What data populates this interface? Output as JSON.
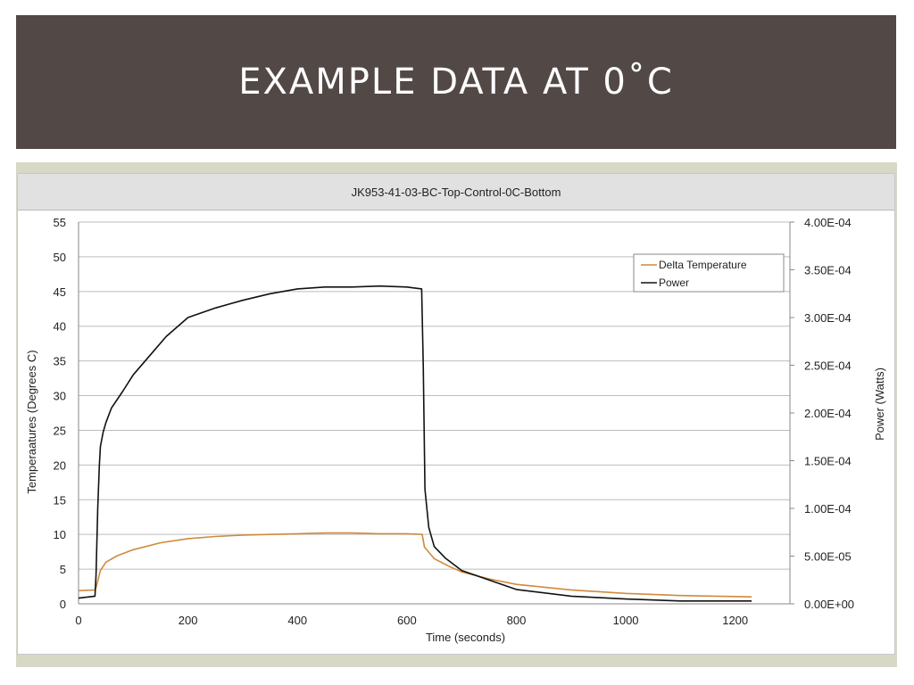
{
  "slide": {
    "title": "EXAMPLE DATA AT 0˚C"
  },
  "colors": {
    "banner": "#524846",
    "frame": "#d7d9c6",
    "delta_temperature": "#d08a3c",
    "power": "#111111"
  },
  "chart_data": {
    "type": "line",
    "title": "JK953-41-03-BC-Top-Control-0C-Bottom",
    "xlabel": "Time (seconds)",
    "ylabel_left": "Temperaatures (Degrees C)",
    "ylabel_right": "Power (Watts)",
    "xlim": [
      0,
      1300
    ],
    "ylim_left": [
      0,
      55
    ],
    "ylim_right": [
      0,
      0.0004
    ],
    "x_ticks": [
      "0",
      "200",
      "400",
      "600",
      "800",
      "1000",
      "1200"
    ],
    "y_left_ticks": [
      "0",
      "5",
      "10",
      "15",
      "20",
      "25",
      "30",
      "35",
      "40",
      "45",
      "50",
      "55"
    ],
    "y_right_ticks": [
      "0.00E+00",
      "5.00E-05",
      "1.00E-04",
      "1.50E-04",
      "2.00E-04",
      "2.50E-04",
      "3.00E-04",
      "3.50E-04",
      "4.00E-04"
    ],
    "grid": true,
    "legend": "top-right",
    "series": [
      {
        "name": "Delta Temperature",
        "axis": "left",
        "color": "#d08a3c",
        "x": [
          0,
          30,
          33,
          40,
          50,
          70,
          100,
          150,
          200,
          250,
          300,
          350,
          400,
          450,
          500,
          550,
          600,
          628,
          632,
          650,
          680,
          700,
          750,
          800,
          900,
          1000,
          1100,
          1230
        ],
        "y": [
          1.9,
          2.0,
          2.6,
          4.8,
          6.0,
          6.9,
          7.8,
          8.8,
          9.4,
          9.7,
          9.9,
          10.0,
          10.1,
          10.2,
          10.2,
          10.1,
          10.1,
          10.0,
          8.2,
          6.5,
          5.3,
          4.6,
          3.6,
          2.8,
          2.0,
          1.5,
          1.2,
          1.0
        ]
      },
      {
        "name": "Power",
        "axis": "right",
        "color": "#111111",
        "x": [
          0,
          30,
          32,
          35,
          38,
          40,
          45,
          50,
          60,
          80,
          100,
          130,
          160,
          200,
          250,
          300,
          350,
          400,
          450,
          500,
          550,
          600,
          627,
          630,
          633,
          640,
          650,
          670,
          700,
          750,
          800,
          900,
          1000,
          1100,
          1230
        ],
        "y": [
          6e-06,
          8e-06,
          3e-05,
          0.0001,
          0.000145,
          0.000165,
          0.00018,
          0.00019,
          0.000205,
          0.000222,
          0.00024,
          0.00026,
          0.00028,
          0.0003,
          0.00031,
          0.000318,
          0.000325,
          0.00033,
          0.000332,
          0.000332,
          0.000333,
          0.000332,
          0.00033,
          0.00025,
          0.00012,
          8e-05,
          6e-05,
          4.8e-05,
          3.5e-05,
          2.5e-05,
          1.5e-05,
          8e-06,
          5e-06,
          3e-06,
          3e-06
        ]
      }
    ]
  }
}
